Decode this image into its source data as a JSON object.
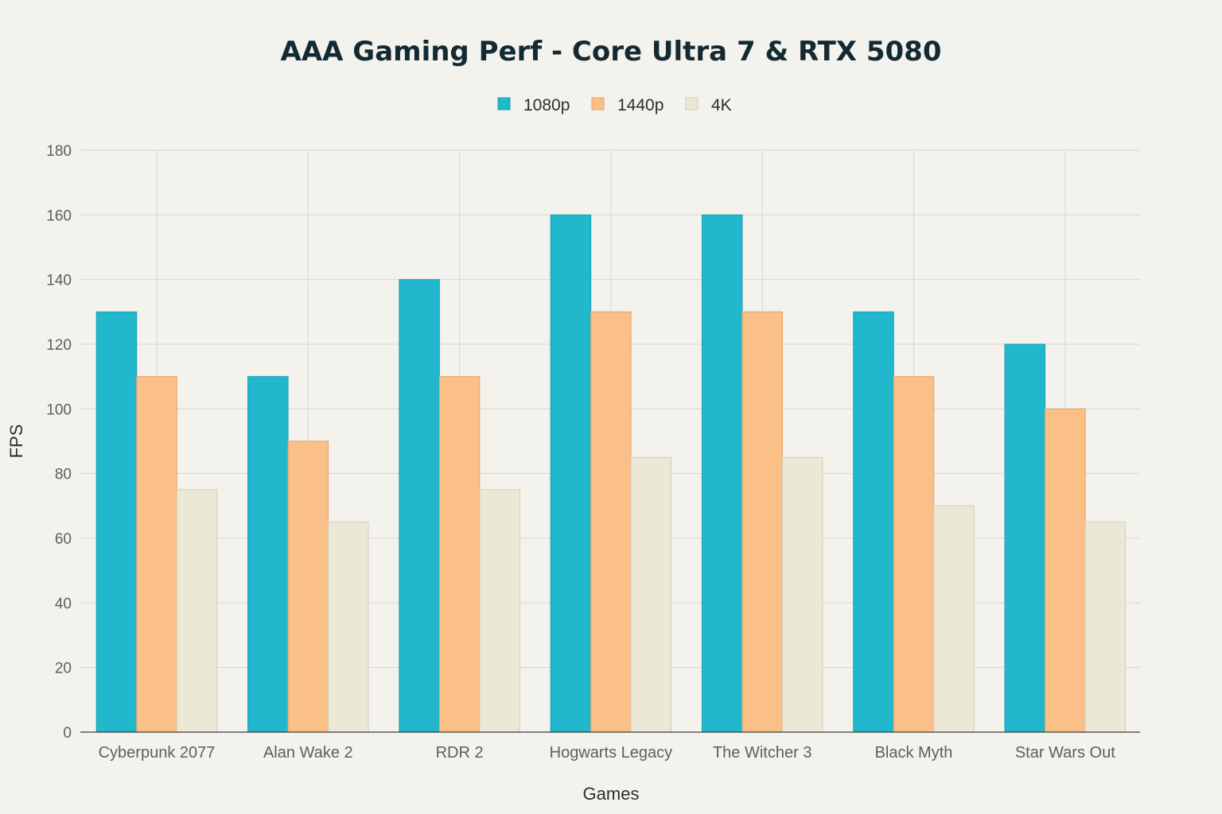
{
  "chart_data": {
    "type": "bar",
    "title": "AAA Gaming Perf - Core Ultra 7 & RTX 5080",
    "xlabel": "Games",
    "ylabel": "FPS",
    "ylim": [
      0,
      180
    ],
    "yticks": [
      0,
      20,
      40,
      60,
      80,
      100,
      120,
      140,
      160,
      180
    ],
    "grid": true,
    "legend_position": "top-center",
    "categories": [
      "Cyberpunk 2077",
      "Alan Wake 2",
      "RDR 2",
      "Hogwarts Legacy",
      "The Witcher 3",
      "Black Myth",
      "Star Wars Out"
    ],
    "series": [
      {
        "name": "1080p",
        "color": "#21b7cc",
        "stroke": "#1a9fb2",
        "values": [
          130,
          110,
          140,
          160,
          160,
          130,
          120
        ]
      },
      {
        "name": "1440p",
        "color": "#fbbf88",
        "stroke": "#e3a46c",
        "values": [
          110,
          90,
          110,
          130,
          130,
          110,
          100
        ]
      },
      {
        "name": "4K",
        "color": "#ebe8d6",
        "stroke": "#d2cfbd",
        "values": [
          75,
          65,
          75,
          85,
          85,
          70,
          65
        ]
      }
    ]
  }
}
